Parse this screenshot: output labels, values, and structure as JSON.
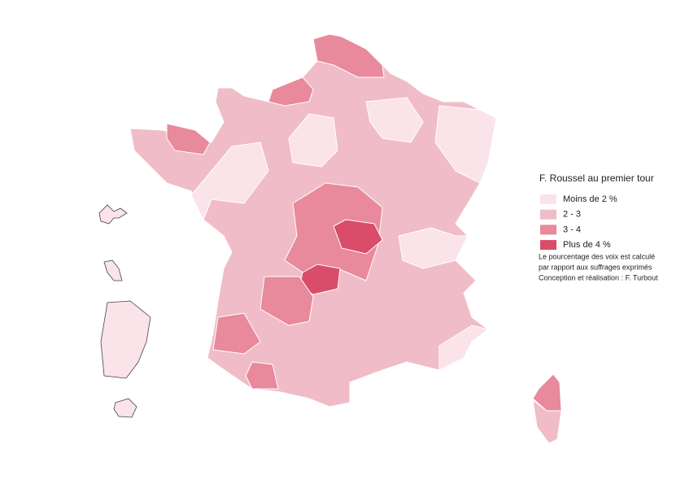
{
  "legend": {
    "title": "F. Roussel au premier tour",
    "items": [
      {
        "label": "Moins de 2 %",
        "color": "#fbe3ea"
      },
      {
        "label": "2 - 3",
        "color": "#f0bcc8"
      },
      {
        "label": "3 - 4",
        "color": "#e8899c"
      },
      {
        "label": "Plus de 4 %",
        "color": "#d94d6a"
      }
    ],
    "notes": [
      "Le pourcentage des voix est calculé",
      "par rapport aux suffrages exprimés",
      "Conception et réalisation : F. Turbout"
    ]
  }
}
